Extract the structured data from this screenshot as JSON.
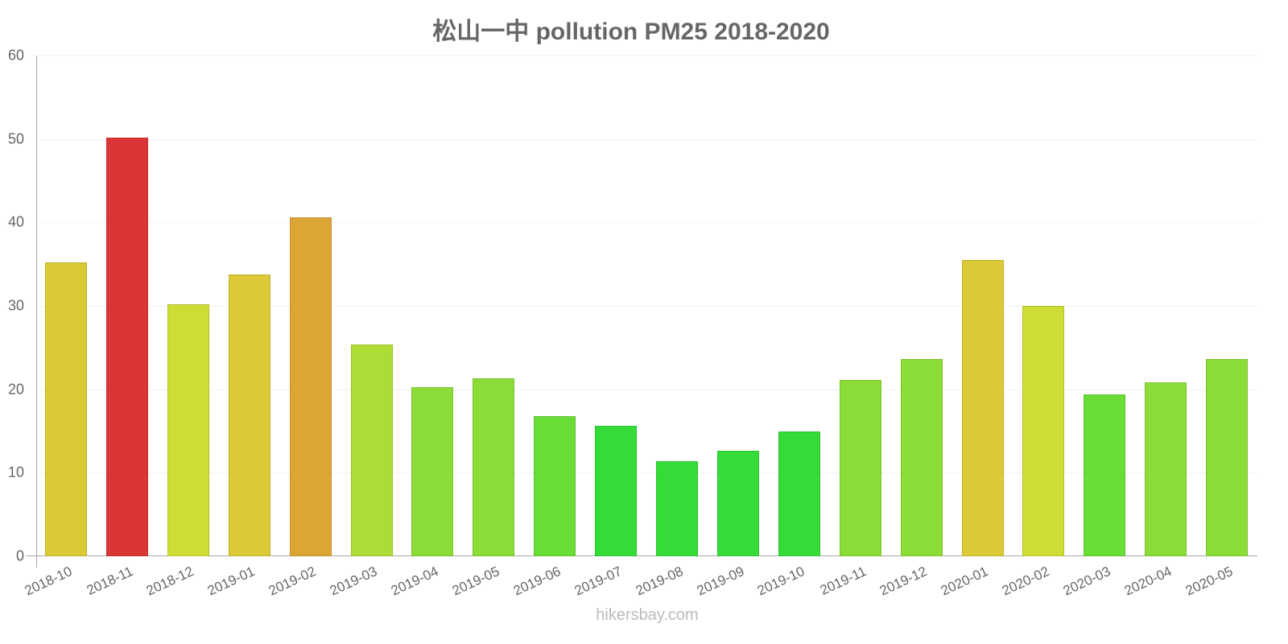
{
  "chart_data": {
    "type": "bar",
    "title": "松山一中 pollution PM25 2018-2020",
    "xlabel": "",
    "ylabel": "",
    "ylim": [
      0,
      60
    ],
    "yticks": [
      0,
      10,
      20,
      30,
      40,
      50,
      60
    ],
    "grid": true,
    "legend": null,
    "categories": [
      "2018-10",
      "2018-11",
      "2018-12",
      "2019-01",
      "2019-02",
      "2019-03",
      "2019-04",
      "2019-05",
      "2019-06",
      "2019-07",
      "2019-08",
      "2019-09",
      "2019-10",
      "2019-11",
      "2019-12",
      "2020-01",
      "2020-02",
      "2020-03",
      "2020-04",
      "2020-05"
    ],
    "values": [
      35.2,
      50.2,
      30.2,
      33.8,
      40.6,
      25.4,
      20.3,
      21.3,
      16.8,
      15.6,
      11.4,
      12.6,
      15.0,
      21.1,
      23.6,
      35.5,
      30.0,
      19.4,
      20.8,
      23.6
    ],
    "colors": [
      "#dbc936",
      "#dc3535",
      "#cfdc36",
      "#dbc936",
      "#dca635",
      "#aedc36",
      "#8bdc36",
      "#8bdc36",
      "#6adc36",
      "#35dc38",
      "#35dc38",
      "#35dc38",
      "#35dc38",
      "#8bdc36",
      "#8bdc36",
      "#dbc936",
      "#cfdc36",
      "#6adc36",
      "#8bdc36",
      "#8bdc36"
    ]
  },
  "footer": {
    "watermark": "hikersbay.com"
  }
}
